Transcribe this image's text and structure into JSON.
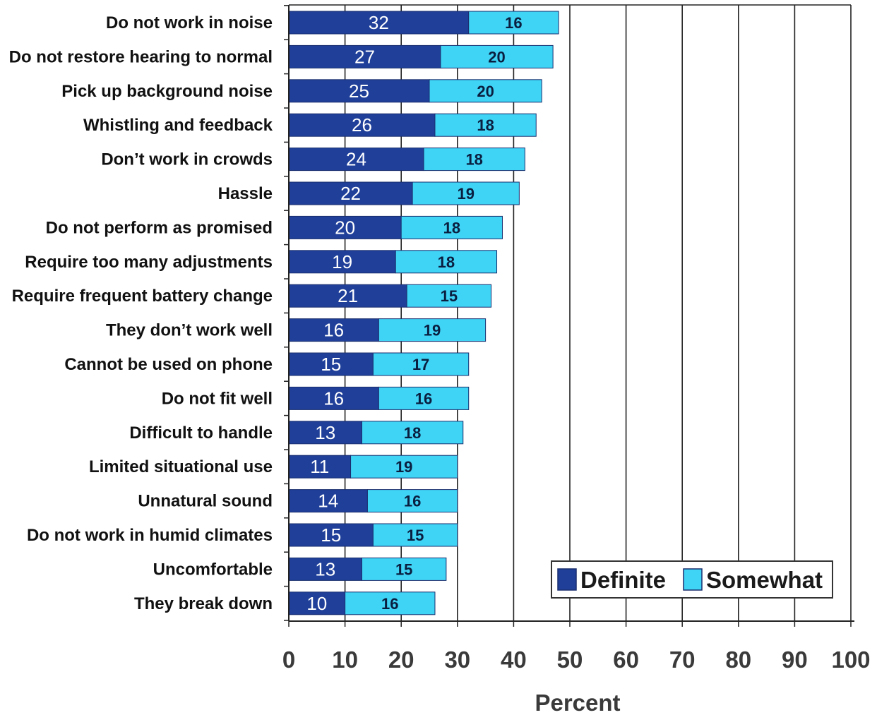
{
  "chart_data": {
    "type": "bar",
    "orientation": "horizontal",
    "stacked": true,
    "categories": [
      "Do not work in noise",
      "Do not restore hearing to normal",
      "Pick up background noise",
      "Whistling and feedback",
      "Don’t work in crowds",
      "Hassle",
      "Do not perform as promised",
      "Require too many adjustments",
      "Require frequent battery change",
      "They don’t work well",
      "Cannot be used on phone",
      "Do not fit well",
      "Difficult to handle",
      "Limited situational use",
      "Unnatural sound",
      "Do not work in humid climates",
      "Uncomfortable",
      "They break down"
    ],
    "series": [
      {
        "name": "Definite",
        "color": "#1f3f99",
        "values": [
          32,
          27,
          25,
          26,
          24,
          22,
          20,
          19,
          21,
          16,
          15,
          16,
          13,
          11,
          14,
          15,
          13,
          10
        ]
      },
      {
        "name": "Somewhat",
        "color": "#3fd3f5",
        "values": [
          16,
          20,
          20,
          18,
          18,
          19,
          18,
          18,
          15,
          19,
          17,
          16,
          18,
          19,
          16,
          15,
          15,
          16
        ]
      }
    ],
    "xlabel": "Percent",
    "xlim": [
      0,
      100
    ],
    "xticks": [
      0,
      10,
      20,
      30,
      40,
      50,
      60,
      70,
      80,
      90,
      100
    ],
    "grid": true,
    "legend_position": "bottom-right"
  }
}
